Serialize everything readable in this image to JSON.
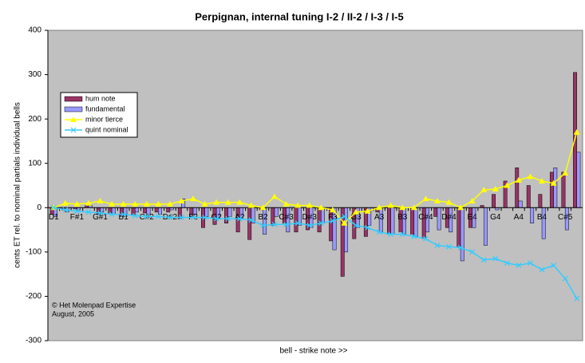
{
  "chart_data": {
    "type": "bar+line",
    "title": "Perpignan, internal tuning I-2 / II-2 / I-3 / I-5",
    "y_label": "cents ET rel. to nominal partials individual bells",
    "x_label": "bell - strike note >>",
    "annotations": [
      "© Het Molenpad Expertise",
      "August, 2005"
    ],
    "categories": [
      "D1",
      null,
      "F#1",
      null,
      "G#1",
      null,
      "B1",
      null,
      "C#2",
      null,
      "D#2",
      null,
      "F2",
      null,
      "G2",
      null,
      "A2",
      null,
      "B2",
      null,
      "C#3",
      null,
      "D#3",
      null,
      "F3",
      null,
      "G3",
      null,
      "A3",
      null,
      "B3",
      null,
      "C#4",
      null,
      "D#4",
      null,
      "E4",
      null,
      "G4",
      null,
      "A4",
      null,
      "B4",
      null,
      "C#5",
      null
    ],
    "series": [
      {
        "name": "hum note",
        "kind": "bar",
        "color": "#993366",
        "values": [
          -15,
          -5,
          -3,
          5,
          -15,
          -12,
          -20,
          -18,
          -12,
          -10,
          -10,
          -25,
          -20,
          -45,
          -38,
          -35,
          -55,
          -72,
          -5,
          -40,
          -35,
          -55,
          -50,
          -55,
          -75,
          -155,
          -70,
          -65,
          -10,
          -60,
          -55,
          -60,
          -70,
          -20,
          -45,
          -90,
          -45,
          5,
          30,
          60,
          90,
          50,
          30,
          80,
          80,
          305
        ]
      },
      {
        "name": "fundamental",
        "kind": "bar",
        "color": "#9999ff",
        "values": [
          -20,
          -10,
          -5,
          5,
          -10,
          -15,
          -20,
          -10,
          -15,
          -15,
          -5,
          20,
          -15,
          -20,
          -25,
          -20,
          -25,
          -35,
          -60,
          -20,
          -55,
          -40,
          -45,
          -35,
          -95,
          -100,
          -45,
          -40,
          -55,
          -60,
          -60,
          -65,
          -55,
          -50,
          -55,
          -120,
          -45,
          -85,
          -5,
          0,
          15,
          -35,
          -70,
          90,
          -50,
          125
        ]
      },
      {
        "name": "minor tierce",
        "kind": "line",
        "color": "#ffff00",
        "marker": "triangle",
        "values": [
          0,
          10,
          8,
          10,
          15,
          8,
          8,
          8,
          8,
          8,
          8,
          15,
          20,
          8,
          12,
          12,
          12,
          5,
          0,
          25,
          8,
          5,
          5,
          0,
          -5,
          -35,
          -10,
          -8,
          0,
          5,
          0,
          0,
          20,
          15,
          12,
          0,
          15,
          40,
          42,
          50,
          62,
          70,
          60,
          55,
          78,
          170
        ]
      },
      {
        "name": "quint nominal",
        "kind": "line",
        "color": "#33ccff",
        "marker": "x",
        "values": [
          0,
          -5,
          -8,
          -10,
          -12,
          -15,
          -15,
          -18,
          -20,
          -20,
          -22,
          -22,
          -22,
          -22,
          -25,
          -25,
          -25,
          -28,
          -40,
          -38,
          -38,
          -35,
          -40,
          -35,
          -30,
          -20,
          -40,
          -45,
          -55,
          -60,
          -60,
          -65,
          -70,
          -85,
          -88,
          -90,
          -100,
          -118,
          -115,
          -125,
          -130,
          -125,
          -140,
          -130,
          -160,
          -205
        ]
      }
    ],
    "ylim": [
      -300,
      400
    ],
    "yticks": [
      -300,
      -200,
      -100,
      0,
      100,
      200,
      300,
      400
    ],
    "grid": false,
    "legend": "upper-left",
    "plot_background": "#c0c0c0"
  }
}
